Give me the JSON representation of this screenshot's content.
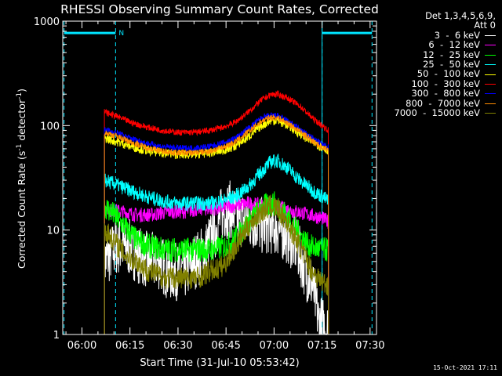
{
  "chart_data": {
    "type": "line",
    "title": "RHESSI Observing Summary Count Rates, Corrected",
    "xlabel": "Start Time (31-Jul-10 05:53:42)",
    "ylabel_main": "Corrected Count Rate (s",
    "ylabel_sup1": "-1",
    "ylabel_mid": " detector",
    "ylabel_sup2": "-1",
    "ylabel_end": ")",
    "ylog": true,
    "ylim": [
      1,
      1000
    ],
    "xlim_min": [
      354,
      452
    ],
    "yticks": [
      {
        "value": 1,
        "label": "1"
      },
      {
        "value": 10,
        "label": "10"
      },
      {
        "value": 100,
        "label": "100"
      },
      {
        "value": 1000,
        "label": "1000"
      }
    ],
    "xticks": [
      {
        "value": 360,
        "label": "06:00"
      },
      {
        "value": 375,
        "label": "06:15"
      },
      {
        "value": 390,
        "label": "06:30"
      },
      {
        "value": 405,
        "label": "06:45"
      },
      {
        "value": 420,
        "label": "07:00"
      },
      {
        "value": 435,
        "label": "07:15"
      },
      {
        "value": 450,
        "label": "07:30"
      }
    ],
    "markers": {
      "dashed_lines_min": [
        354.4,
        370.5,
        435.0,
        450.6
      ],
      "solid_line_min": 435.0,
      "night_bars": [
        [
          354.4,
          370.5
        ],
        [
          435.0,
          450.6
        ]
      ],
      "night_bar_value": 770,
      "night_label": "N",
      "night_label_min": 371.5
    },
    "legend_header": [
      "Det 1,3,4,5,6,9,",
      "Att 0"
    ],
    "series": [
      {
        "name": "3 - 6 keV",
        "color": "#ffffff",
        "x": [
          367,
          369,
          371,
          374,
          377,
          381,
          384,
          387,
          392,
          395,
          398,
          401,
          404,
          406,
          408,
          411,
          414,
          416,
          418,
          420,
          422,
          424,
          427,
          430,
          432,
          433,
          434,
          436,
          437
        ],
        "y": [
          5,
          6,
          7,
          7,
          6,
          5,
          5,
          4,
          4,
          5,
          6,
          9,
          15,
          16,
          14,
          12,
          12,
          11,
          11,
          11,
          10,
          9,
          7,
          4,
          3,
          2,
          1.3,
          1.2,
          1.1
        ]
      },
      {
        "name": "6 - 12 keV",
        "color": "#ff00ff",
        "x": [
          367,
          372,
          377,
          382,
          387,
          392,
          397,
          402,
          407,
          412,
          417,
          420,
          423,
          427,
          431,
          435,
          437
        ],
        "y": [
          16,
          15,
          14,
          14,
          15,
          15,
          16,
          16,
          17,
          18,
          17,
          17,
          16,
          15,
          14,
          13,
          12
        ]
      },
      {
        "name": "12 - 25 keV",
        "color": "#00ff00",
        "x": [
          367,
          370,
          373,
          377,
          381,
          386,
          391,
          396,
          401,
          405,
          409,
          413,
          417,
          420,
          423,
          427,
          431,
          435,
          437
        ],
        "y": [
          17,
          14,
          11,
          8,
          7,
          6.5,
          6.5,
          6.5,
          6.5,
          7,
          9,
          13,
          17,
          18,
          15,
          10,
          7,
          6.5,
          6.5
        ]
      },
      {
        "name": "25 - 50 keV",
        "color": "#00ffff",
        "x": [
          367,
          371,
          375,
          380,
          385,
          390,
          395,
          400,
          404,
          408,
          412,
          416,
          419,
          421,
          424,
          428,
          432,
          435,
          437
        ],
        "y": [
          30,
          27,
          24,
          21,
          19,
          18,
          18,
          18,
          19,
          21,
          26,
          36,
          45,
          46,
          40,
          30,
          24,
          21,
          19
        ]
      },
      {
        "name": "50 - 100 keV",
        "color": "#ffff00",
        "x": [
          367,
          371,
          375,
          380,
          385,
          390,
          395,
          400,
          404,
          408,
          412,
          416,
          419,
          421,
          424,
          428,
          432,
          435,
          437
        ],
        "y": [
          76,
          70,
          64,
          58,
          55,
          53,
          53,
          55,
          58,
          64,
          78,
          100,
          112,
          112,
          102,
          84,
          70,
          62,
          58
        ]
      },
      {
        "name": "100 - 300 keV",
        "color": "#ff0000",
        "x": [
          367,
          371,
          375,
          380,
          385,
          390,
          395,
          400,
          404,
          408,
          412,
          416,
          419,
          421,
          424,
          428,
          432,
          435,
          437
        ],
        "y": [
          135,
          122,
          108,
          97,
          90,
          86,
          86,
          90,
          96,
          108,
          135,
          175,
          198,
          200,
          185,
          155,
          118,
          100,
          90
        ]
      },
      {
        "name": "300 - 800 keV",
        "color": "#0000ff",
        "x": [
          367,
          371,
          375,
          380,
          385,
          390,
          395,
          400,
          404,
          408,
          412,
          416,
          419,
          421,
          424,
          428,
          432,
          435,
          437
        ],
        "y": [
          92,
          85,
          76,
          68,
          63,
          61,
          61,
          63,
          68,
          76,
          94,
          118,
          125,
          124,
          112,
          92,
          76,
          66,
          62
        ]
      },
      {
        "name": "800 - 7000 keV",
        "color": "#ff8c00",
        "x": [
          367,
          371,
          375,
          380,
          385,
          390,
          395,
          400,
          404,
          408,
          412,
          416,
          419,
          421,
          424,
          428,
          432,
          435,
          437
        ],
        "y": [
          86,
          79,
          70,
          62,
          57,
          55,
          55,
          57,
          62,
          70,
          87,
          110,
          120,
          119,
          107,
          88,
          71,
          62,
          58
        ]
      },
      {
        "name": "7000 - 15000 keV",
        "color": "#808000",
        "x": [
          367,
          370,
          373,
          377,
          381,
          386,
          391,
          396,
          400,
          404,
          408,
          412,
          416,
          419,
          421,
          424,
          428,
          432,
          435,
          437
        ],
        "y": [
          10,
          8,
          6,
          5,
          4,
          3.5,
          3.5,
          3.5,
          4,
          4.5,
          7,
          11,
          15,
          17,
          16,
          12,
          7,
          4,
          3.2,
          3
        ]
      }
    ]
  },
  "stamp": "15-Oct-2021 17:11"
}
